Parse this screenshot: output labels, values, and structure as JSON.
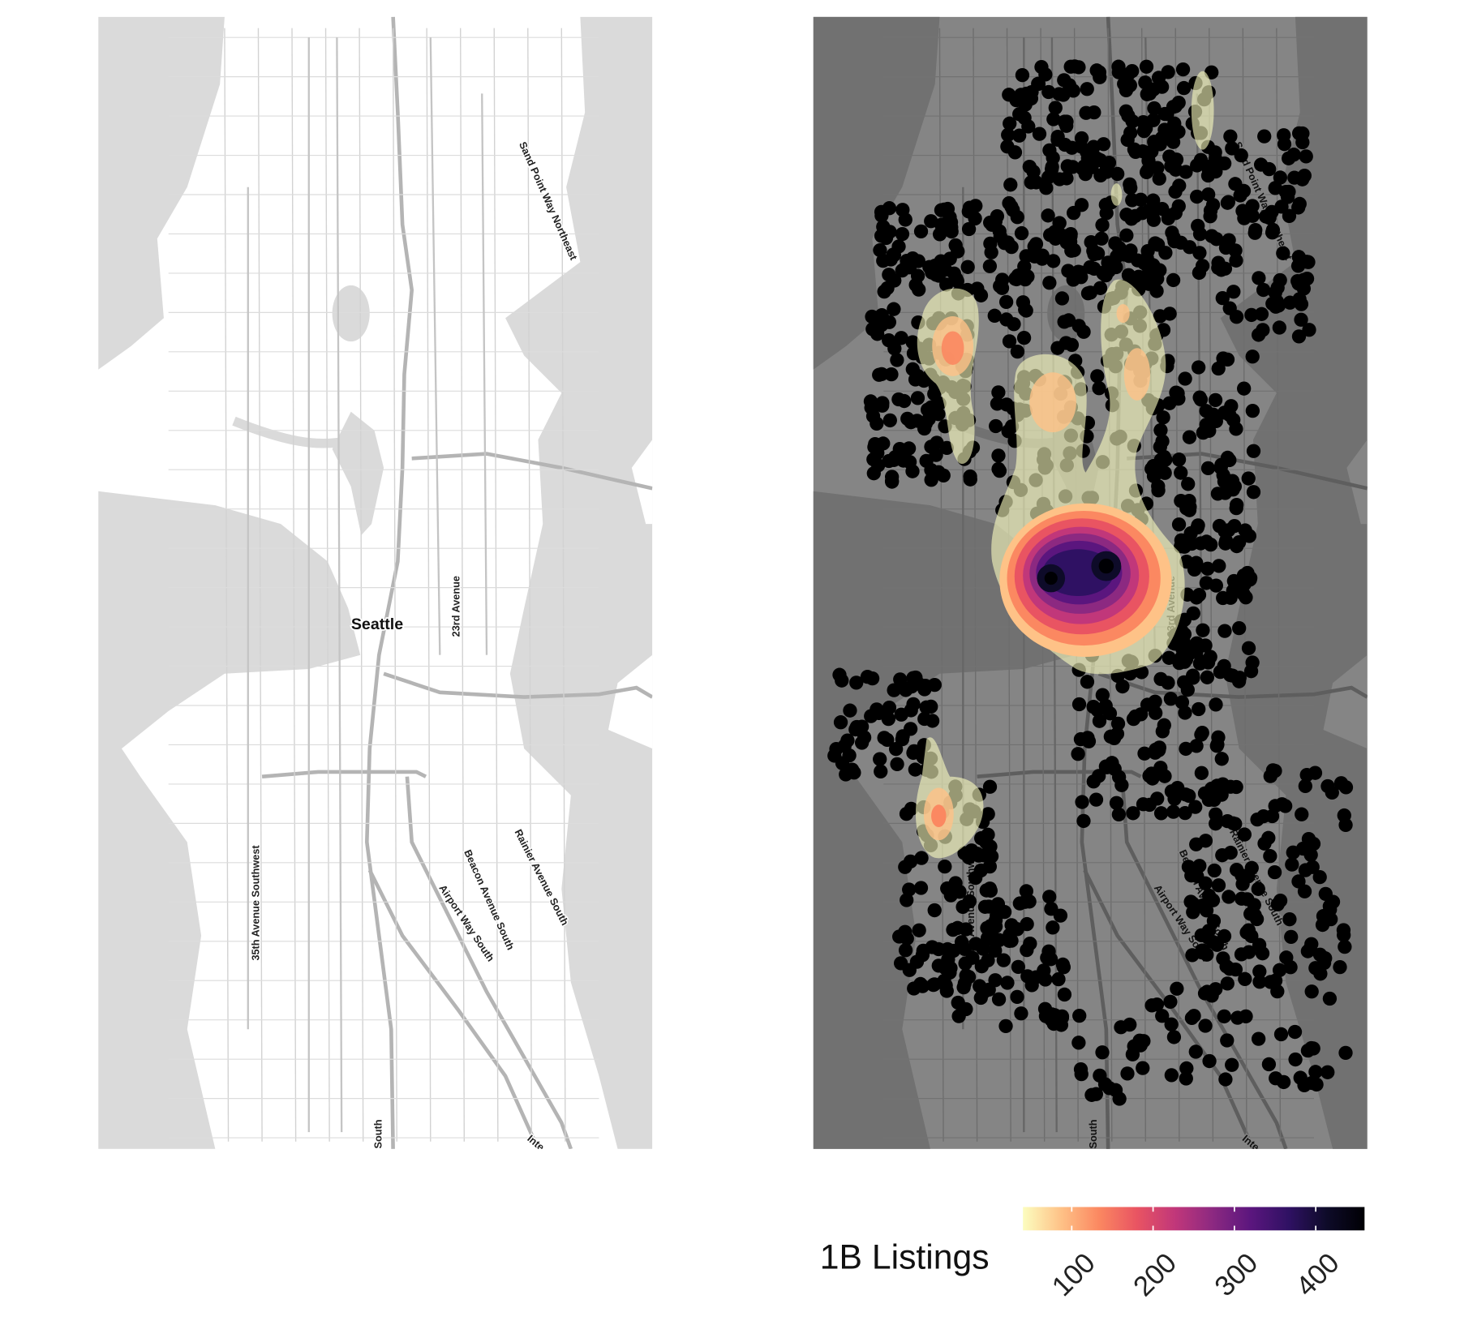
{
  "map_labels": {
    "city": "Seattle",
    "streets": [
      "Sand Point Way Northeast",
      "23rd Avenue",
      "35th Avenue Southwest",
      "Beacon Avenue South",
      "Airport Way South",
      "Rainier Avenue South",
      "South",
      "Inte"
    ]
  },
  "legend": {
    "title": "1B Listings",
    "lim": [
      40,
      460
    ],
    "ticks": [
      100,
      200,
      300,
      400
    ],
    "colors": [
      "#fcfdbf",
      "#fec287",
      "#fb8861",
      "#e95462",
      "#c1377a",
      "#8c2981",
      "#5b167e",
      "#2f1163",
      "#0e0b29",
      "#000004"
    ]
  }
}
